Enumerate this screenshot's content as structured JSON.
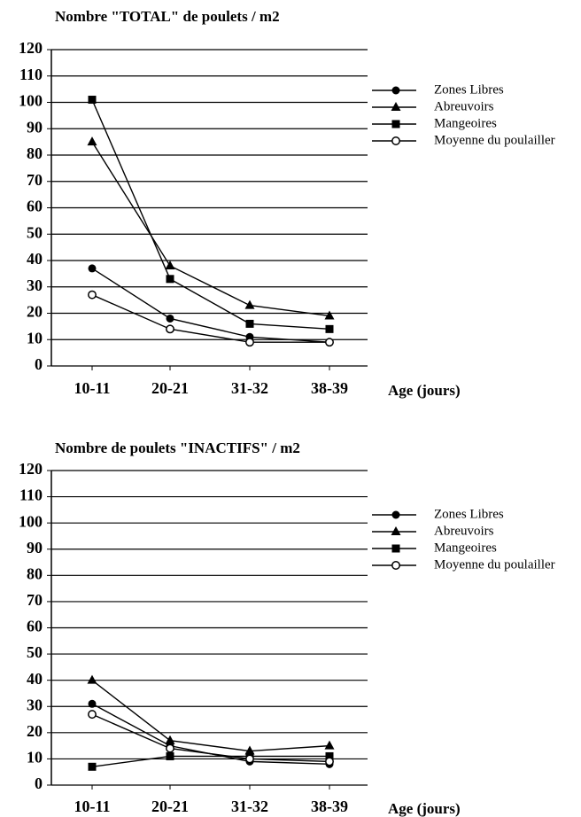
{
  "chart_data": [
    {
      "type": "line",
      "title": "Nombre \"TOTAL\" de poulets / m2",
      "x_label": "Age (jours)",
      "categories": [
        "10-11",
        "20-21",
        "31-32",
        "38-39"
      ],
      "ylim": [
        0,
        120
      ],
      "yticks": [
        0,
        10,
        20,
        30,
        40,
        50,
        60,
        70,
        80,
        90,
        100,
        110,
        120
      ],
      "grid": true,
      "series": [
        {
          "name": "Zones Libres",
          "color": "#000000",
          "marker": "circle",
          "values": [
            37,
            18,
            11,
            9
          ]
        },
        {
          "name": "Abreuvoirs",
          "color": "#000000",
          "marker": "triangle",
          "values": [
            85,
            38,
            23,
            19
          ]
        },
        {
          "name": "Mangeoires",
          "color": "#000000",
          "marker": "square",
          "values": [
            101,
            33,
            16,
            14
          ]
        },
        {
          "name": "Moyenne du poulailler",
          "color": "#000000",
          "marker": "open-circle",
          "values": [
            27,
            14,
            9,
            9
          ]
        }
      ]
    },
    {
      "type": "line",
      "title": "Nombre de poulets \"INACTIFS\" / m2",
      "x_label": "Age (jours)",
      "categories": [
        "10-11",
        "20-21",
        "31-32",
        "38-39"
      ],
      "ylim": [
        0,
        120
      ],
      "yticks": [
        0,
        10,
        20,
        30,
        40,
        50,
        60,
        70,
        80,
        90,
        100,
        110,
        120
      ],
      "grid": true,
      "series": [
        {
          "name": "Zones Libres",
          "color": "#000000",
          "marker": "circle",
          "values": [
            31,
            15,
            9,
            8
          ]
        },
        {
          "name": "Abreuvoirs",
          "color": "#000000",
          "marker": "triangle",
          "values": [
            40,
            17,
            13,
            15
          ]
        },
        {
          "name": "Mangeoires",
          "color": "#000000",
          "marker": "square",
          "values": [
            7,
            11,
            11,
            11
          ]
        },
        {
          "name": "Moyenne du poulailler",
          "color": "#000000",
          "marker": "open-circle",
          "values": [
            27,
            14,
            10,
            9
          ]
        }
      ]
    }
  ]
}
